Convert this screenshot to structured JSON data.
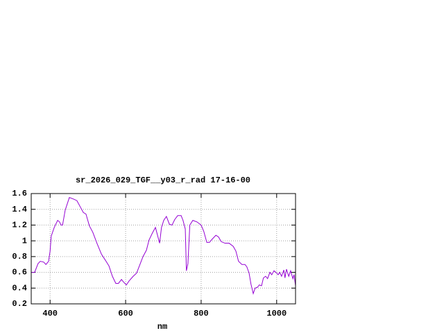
{
  "chart_data": {
    "type": "line",
    "title": "sr_2026_029_TGF__y03_r_rad 17-16-00",
    "x_label": "nm",
    "x": [
      350,
      359,
      368,
      374,
      383,
      389,
      396,
      400,
      403,
      411,
      420,
      425,
      429,
      433,
      440,
      451,
      462,
      471,
      480,
      488,
      495,
      504,
      513,
      524,
      536,
      547,
      556,
      565,
      574,
      581,
      589,
      594,
      602,
      609,
      620,
      629,
      638,
      646,
      655,
      662,
      671,
      679,
      684,
      690,
      695,
      701,
      708,
      716,
      723,
      730,
      738,
      747,
      752,
      758,
      761,
      765,
      770,
      778,
      789,
      800,
      807,
      815,
      822,
      829,
      839,
      846,
      853,
      863,
      874,
      885,
      892,
      899,
      908,
      916,
      921,
      927,
      932,
      938,
      943,
      949,
      954,
      960,
      965,
      971,
      976,
      982,
      987,
      993,
      998,
      1004,
      1008,
      1013,
      1019,
      1022,
      1026,
      1032,
      1037,
      1043,
      1046,
      1050
    ],
    "series": [
      {
        "color": "#9400d3",
        "values": [
          0.6,
          0.6,
          0.71,
          0.74,
          0.73,
          0.7,
          0.74,
          0.87,
          1.06,
          1.17,
          1.26,
          1.24,
          1.2,
          1.2,
          1.39,
          1.55,
          1.53,
          1.51,
          1.43,
          1.36,
          1.34,
          1.19,
          1.11,
          0.97,
          0.83,
          0.75,
          0.68,
          0.55,
          0.46,
          0.46,
          0.51,
          0.48,
          0.44,
          0.49,
          0.55,
          0.59,
          0.7,
          0.8,
          0.88,
          1.01,
          1.1,
          1.17,
          1.08,
          0.97,
          1.17,
          1.26,
          1.31,
          1.21,
          1.2,
          1.27,
          1.32,
          1.32,
          1.26,
          1.15,
          0.62,
          0.71,
          1.2,
          1.26,
          1.24,
          1.2,
          1.12,
          0.98,
          0.98,
          1.02,
          1.07,
          1.05,
          0.99,
          0.97,
          0.97,
          0.93,
          0.87,
          0.74,
          0.7,
          0.7,
          0.67,
          0.59,
          0.45,
          0.33,
          0.4,
          0.41,
          0.44,
          0.43,
          0.53,
          0.55,
          0.52,
          0.6,
          0.57,
          0.62,
          0.6,
          0.57,
          0.6,
          0.55,
          0.63,
          0.53,
          0.64,
          0.55,
          0.62,
          0.52,
          0.57,
          0.43
        ]
      }
    ],
    "xlim": [
      350,
      1050
    ],
    "xticks": [
      400,
      600,
      800,
      1000
    ],
    "ylim": [
      0.2,
      1.6
    ],
    "yticks": [
      0.2,
      0.4,
      0.6,
      0.8,
      1,
      1.2,
      1.4,
      1.6
    ],
    "grid": true
  }
}
